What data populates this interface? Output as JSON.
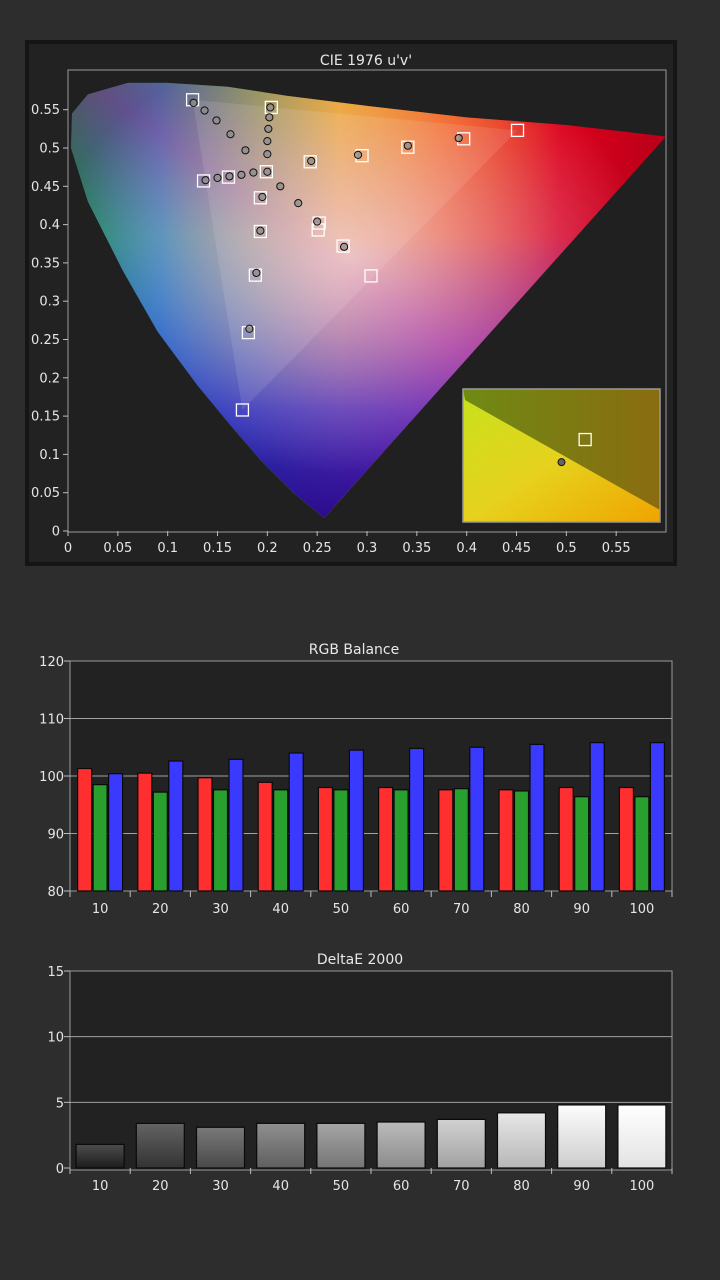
{
  "chart_data": [
    {
      "type": "scatter",
      "title": "CIE 1976 u'v'",
      "xlim": [
        0,
        0.6
      ],
      "ylim": [
        0,
        0.6
      ],
      "x_ticks": [
        "0",
        "0.05",
        "0.1",
        "0.15",
        "0.2",
        "0.25",
        "0.3",
        "0.35",
        "0.4",
        "0.45",
        "0.5",
        "0.55"
      ],
      "y_ticks": [
        "0",
        "0.05",
        "0.1",
        "0.15",
        "0.2",
        "0.25",
        "0.3",
        "0.35",
        "0.4",
        "0.45",
        "0.5",
        "0.55"
      ],
      "spectral_locus": [
        [
          0.257,
          0.017
        ],
        [
          0.226,
          0.05
        ],
        [
          0.195,
          0.09
        ],
        [
          0.165,
          0.135
        ],
        [
          0.13,
          0.19
        ],
        [
          0.09,
          0.26
        ],
        [
          0.055,
          0.34
        ],
        [
          0.02,
          0.43
        ],
        [
          0.003,
          0.5
        ],
        [
          0.004,
          0.545
        ],
        [
          0.02,
          0.57
        ],
        [
          0.06,
          0.585
        ],
        [
          0.1,
          0.585
        ],
        [
          0.16,
          0.58
        ],
        [
          0.22,
          0.568
        ],
        [
          0.3,
          0.555
        ],
        [
          0.4,
          0.54
        ],
        [
          0.5,
          0.53
        ],
        [
          0.6,
          0.515
        ]
      ],
      "target_gamut": [
        [
          0.451,
          0.523
        ],
        [
          0.125,
          0.563
        ],
        [
          0.175,
          0.158
        ]
      ],
      "targets": [
        [
          0.125,
          0.563
        ],
        [
          0.136,
          0.457
        ],
        [
          0.161,
          0.462
        ],
        [
          0.204,
          0.553
        ],
        [
          0.251,
          0.393
        ],
        [
          0.188,
          0.334
        ],
        [
          0.181,
          0.259
        ],
        [
          0.175,
          0.158
        ],
        [
          0.243,
          0.482
        ],
        [
          0.295,
          0.49
        ],
        [
          0.341,
          0.501
        ],
        [
          0.397,
          0.512
        ],
        [
          0.451,
          0.523
        ],
        [
          0.193,
          0.435
        ],
        [
          0.193,
          0.391
        ],
        [
          0.252,
          0.402
        ],
        [
          0.276,
          0.372
        ],
        [
          0.304,
          0.333
        ],
        [
          0.199,
          0.469
        ]
      ],
      "measurements": [
        [
          0.126,
          0.559
        ],
        [
          0.137,
          0.549
        ],
        [
          0.149,
          0.536
        ],
        [
          0.163,
          0.518
        ],
        [
          0.178,
          0.497
        ],
        [
          0.138,
          0.458
        ],
        [
          0.15,
          0.461
        ],
        [
          0.162,
          0.463
        ],
        [
          0.174,
          0.465
        ],
        [
          0.186,
          0.468
        ],
        [
          0.2,
          0.469
        ],
        [
          0.2,
          0.492
        ],
        [
          0.2,
          0.509
        ],
        [
          0.201,
          0.525
        ],
        [
          0.202,
          0.54
        ],
        [
          0.203,
          0.553
        ],
        [
          0.244,
          0.483
        ],
        [
          0.291,
          0.491
        ],
        [
          0.341,
          0.503
        ],
        [
          0.392,
          0.513
        ],
        [
          0.213,
          0.45
        ],
        [
          0.231,
          0.428
        ],
        [
          0.25,
          0.404
        ],
        [
          0.277,
          0.371
        ],
        [
          0.195,
          0.436
        ],
        [
          0.193,
          0.392
        ],
        [
          0.189,
          0.337
        ],
        [
          0.182,
          0.264
        ]
      ],
      "inset": {
        "target": [
          0.62,
          0.38
        ],
        "measured": [
          0.5,
          0.55
        ]
      }
    },
    {
      "type": "bar",
      "title": "RGB Balance",
      "categories": [
        "10",
        "20",
        "30",
        "40",
        "50",
        "60",
        "70",
        "80",
        "90",
        "100"
      ],
      "ylim": [
        80,
        120
      ],
      "y_ticks": [
        "80",
        "90",
        "100",
        "110",
        "120"
      ],
      "series": [
        {
          "values": [
            101.3,
            100.5,
            99.7,
            98.9,
            98.0,
            98.0,
            97.6,
            97.6,
            98.0,
            98.0
          ],
          "color": "#ff2f2f"
        },
        {
          "values": [
            98.5,
            97.2,
            97.6,
            97.6,
            97.6,
            97.6,
            97.8,
            97.4,
            96.4,
            96.4
          ],
          "color": "#29a02d"
        },
        {
          "values": [
            100.4,
            102.6,
            102.9,
            104.0,
            104.5,
            104.8,
            105.0,
            105.5,
            105.8,
            105.8
          ],
          "color": "#3a3aff"
        }
      ]
    },
    {
      "type": "bar",
      "title": "DeltaE 2000",
      "categories": [
        "10",
        "20",
        "30",
        "40",
        "50",
        "60",
        "70",
        "80",
        "90",
        "100"
      ],
      "ylim": [
        0,
        15
      ],
      "y_ticks": [
        "0",
        "5",
        "10",
        "15"
      ],
      "values": [
        1.8,
        3.4,
        3.1,
        3.4,
        3.4,
        3.5,
        3.7,
        4.2,
        4.8,
        4.8
      ],
      "gray_levels": [
        10,
        20,
        30,
        40,
        50,
        60,
        70,
        80,
        90,
        100
      ]
    }
  ]
}
